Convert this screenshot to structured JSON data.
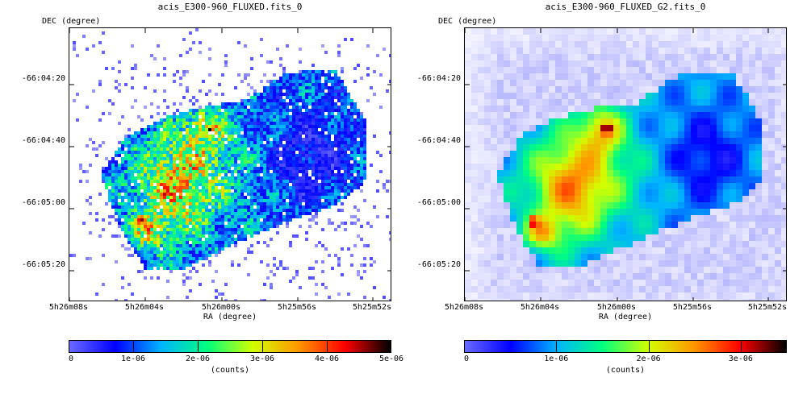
{
  "chart_data": [
    {
      "type": "heatmap",
      "title": "acis_E300-960_FLUXED.fits_0",
      "xlabel": "RA (degree)",
      "ylabel": "DEC (degree)",
      "x_ticks": [
        "5h26m08s",
        "5h26m04s",
        "5h26m00s",
        "5h25m56s",
        "5h25m52s"
      ],
      "y_ticks": [
        "-66:04:20",
        "-66:04:40",
        "-66:05:00",
        "-66:05:20"
      ],
      "colorbar": {
        "label": "(counts)",
        "ticks": [
          "0",
          "1e-06",
          "2e-06",
          "3e-06",
          "4e-06",
          "5e-06"
        ],
        "tick_values": [
          0,
          1e-06,
          2e-06,
          3e-06,
          4e-06,
          5e-06
        ],
        "range": [
          0,
          5e-06
        ]
      },
      "style": "raw-pixelated"
    },
    {
      "type": "heatmap",
      "title": "acis_E300-960_FLUXED_G2.fits_0",
      "xlabel": "RA (degree)",
      "ylabel": "DEC (degree)",
      "x_ticks": [
        "5h26m08s",
        "5h26m04s",
        "5h26m00s",
        "5h25m56s",
        "5h25m52s"
      ],
      "y_ticks": [
        "-66:04:20",
        "-66:04:40",
        "-66:05:00",
        "-66:05:20"
      ],
      "colorbar": {
        "label": "(counts)",
        "ticks": [
          "0",
          "1e-06",
          "2e-06",
          "3e-06"
        ],
        "tick_values": [
          0,
          1e-06,
          2e-06,
          3e-06
        ],
        "range": [
          0,
          3.5e-06
        ]
      },
      "style": "smoothed"
    }
  ],
  "colormap": [
    "#ffffff",
    "#6a6aff",
    "#0000ff",
    "#00b4ff",
    "#00ff7f",
    "#d2ff00",
    "#ff9600",
    "#ff0000",
    "#000000"
  ]
}
